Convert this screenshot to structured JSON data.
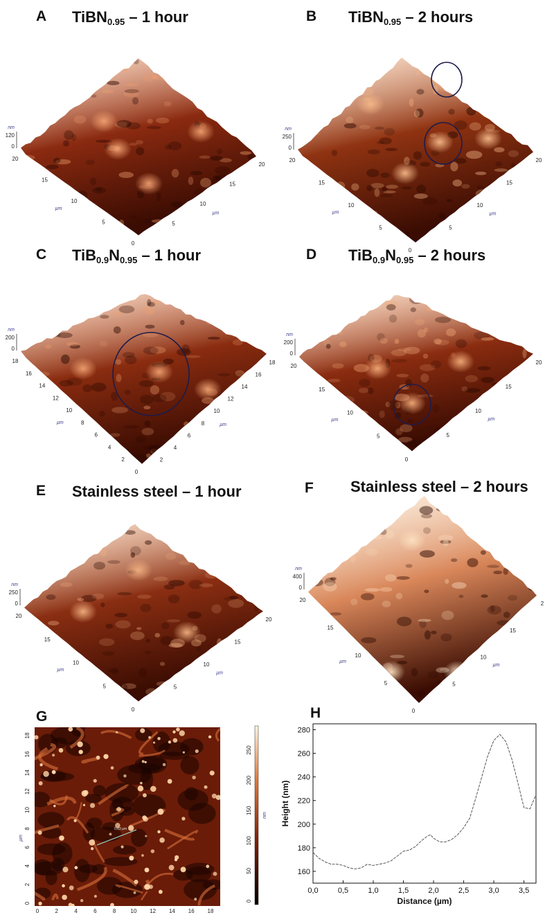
{
  "panels": [
    {
      "letter": "A",
      "title_main": "TiBN",
      "title_sub": "0.95",
      "title_tail": " – 1 hour",
      "z_unit": "nm",
      "z_tick": "120",
      "z_zero": "0",
      "left_axis_ticks": [
        "20",
        "15",
        "10",
        "5",
        "0"
      ],
      "right_axis_ticks": [
        "5",
        "10",
        "15",
        "20"
      ],
      "axis_unit": "µm",
      "surface_color": "#8a2a10",
      "highlight_color": "#f0a070"
    },
    {
      "letter": "B",
      "title_main": "TiBN",
      "title_sub": "0.95",
      "title_tail": " – 2 hours",
      "z_unit": "nm",
      "z_tick": "250",
      "z_zero": "0",
      "left_axis_ticks": [
        "20",
        "15",
        "10",
        "5",
        "0"
      ],
      "right_axis_ticks": [
        "5",
        "10",
        "15",
        "20"
      ],
      "axis_unit": "µm",
      "surface_color": "#8f3312",
      "highlight_color": "#f5b888"
    },
    {
      "letter": "C",
      "title_main": "TiB",
      "title_sub": "0.9",
      "title_mid": "N",
      "title_sub2": "0.95",
      "title_tail": " – 1 hour",
      "z_unit": "nm",
      "z_tick": "200",
      "z_zero": "0",
      "left_axis_ticks": [
        "18",
        "16",
        "14",
        "12",
        "10",
        "8",
        "6",
        "4",
        "2",
        "0"
      ],
      "right_axis_ticks": [
        "2",
        "4",
        "6",
        "8",
        "10",
        "12",
        "14",
        "16",
        "18"
      ],
      "axis_unit": "µm",
      "surface_color": "#8a2c10",
      "highlight_color": "#eea070"
    },
    {
      "letter": "D",
      "title_main": "TiB",
      "title_sub": "0.9",
      "title_mid": "N",
      "title_sub2": "0.95",
      "title_tail": " – 2 hours",
      "z_unit": "nm",
      "z_tick": "200",
      "z_zero": "0",
      "left_axis_ticks": [
        "20",
        "15",
        "10",
        "5",
        "0"
      ],
      "right_axis_ticks": [
        "5",
        "10",
        "15",
        "20"
      ],
      "axis_unit": "µm",
      "surface_color": "#8a2c10",
      "highlight_color": "#f2aa78"
    },
    {
      "letter": "E",
      "title_main": "Stainless steel – 1 hour",
      "z_unit": "nm",
      "z_tick": "250",
      "z_zero": "0",
      "left_axis_ticks": [
        "20",
        "15",
        "10",
        "5",
        "0"
      ],
      "right_axis_ticks": [
        "5",
        "10",
        "15",
        "20"
      ],
      "axis_unit": "µm",
      "surface_color": "#8a2e12",
      "highlight_color": "#f0b080"
    },
    {
      "letter": "F",
      "title_main": "Stainless steel – 2 hours",
      "z_unit": "nm",
      "z_tick": "400",
      "z_zero": "0",
      "left_axis_ticks": [
        "20",
        "15",
        "10",
        "5",
        "0"
      ],
      "right_axis_ticks": [
        "5",
        "10",
        "15",
        "2"
      ],
      "axis_unit": "µm",
      "surface_color": "#d9875a",
      "highlight_color": "#fbe0c0"
    }
  ],
  "panel_g": {
    "letter": "G",
    "y_ticks": [
      "0",
      "2",
      "4",
      "6",
      "8",
      "10",
      "12",
      "14",
      "16",
      "18"
    ],
    "x_ticks": [
      "0",
      "2",
      "4",
      "6",
      "8",
      "10",
      "12",
      "14",
      "16",
      "18"
    ],
    "axis_unit": "µm",
    "scale_ticks": [
      "0",
      "50",
      "100",
      "150",
      "200",
      "250"
    ],
    "scale_unit": "nm",
    "line_label": "0.63 µm",
    "base_color": "#6a1c08"
  },
  "chart_data": {
    "type": "line",
    "letter": "H",
    "xlabel": "Distance (µm)",
    "ylabel": "Height (nm)",
    "xlim": [
      0,
      3.7
    ],
    "ylim": [
      150,
      285
    ],
    "x_ticks": [
      "0,0",
      "0,5",
      "1,0",
      "1,5",
      "2,0",
      "2,5",
      "3,0",
      "3,5"
    ],
    "x_tick_values": [
      0,
      0.5,
      1.0,
      1.5,
      2.0,
      2.5,
      3.0,
      3.5
    ],
    "y_ticks": [
      160,
      180,
      200,
      220,
      240,
      260,
      280
    ],
    "x": [
      0.0,
      0.1,
      0.2,
      0.3,
      0.4,
      0.5,
      0.6,
      0.7,
      0.8,
      0.9,
      1.0,
      1.1,
      1.2,
      1.3,
      1.4,
      1.5,
      1.6,
      1.7,
      1.8,
      1.9,
      1.95,
      2.0,
      2.1,
      2.2,
      2.3,
      2.4,
      2.5,
      2.6,
      2.7,
      2.8,
      2.9,
      3.0,
      3.1,
      3.2,
      3.3,
      3.4,
      3.5,
      3.6,
      3.7
    ],
    "y": [
      176,
      171,
      168,
      166,
      166,
      165,
      163,
      162,
      163,
      166,
      165,
      166,
      167,
      169,
      173,
      177,
      178,
      181,
      186,
      190,
      191,
      188,
      185,
      185,
      187,
      191,
      197,
      205,
      222,
      240,
      258,
      271,
      276,
      270,
      255,
      235,
      214,
      213,
      225
    ]
  }
}
